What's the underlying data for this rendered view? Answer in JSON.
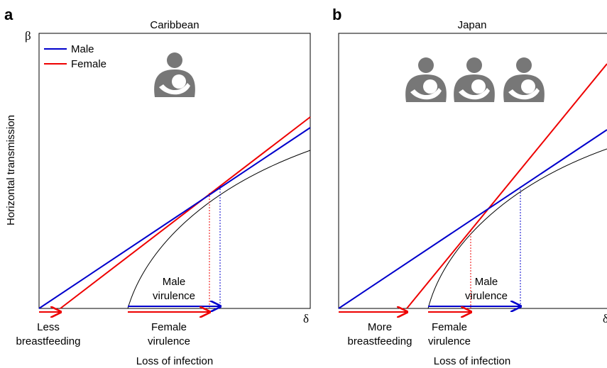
{
  "panels": [
    {
      "letter": "a",
      "title": "Caribbean",
      "y_symbol": "β",
      "x_symbol": "δ",
      "y_label": "Horizontal transmission",
      "legend": [
        "Male",
        "Female"
      ],
      "male_virulence": [
        "Male",
        "virulence"
      ],
      "breastfeeding": [
        "Less",
        "breastfeeding"
      ],
      "female_virulence": [
        "Female",
        "virulence"
      ],
      "x_label": "Loss of infection"
    },
    {
      "letter": "b",
      "title": "Japan",
      "x_symbol": "δ",
      "male_virulence": [
        "Male",
        "virulence"
      ],
      "breastfeeding": [
        "More",
        "breastfeeding"
      ],
      "female_virulence": [
        "Female",
        "virulence"
      ],
      "x_label": "Loss of infection"
    }
  ]
}
